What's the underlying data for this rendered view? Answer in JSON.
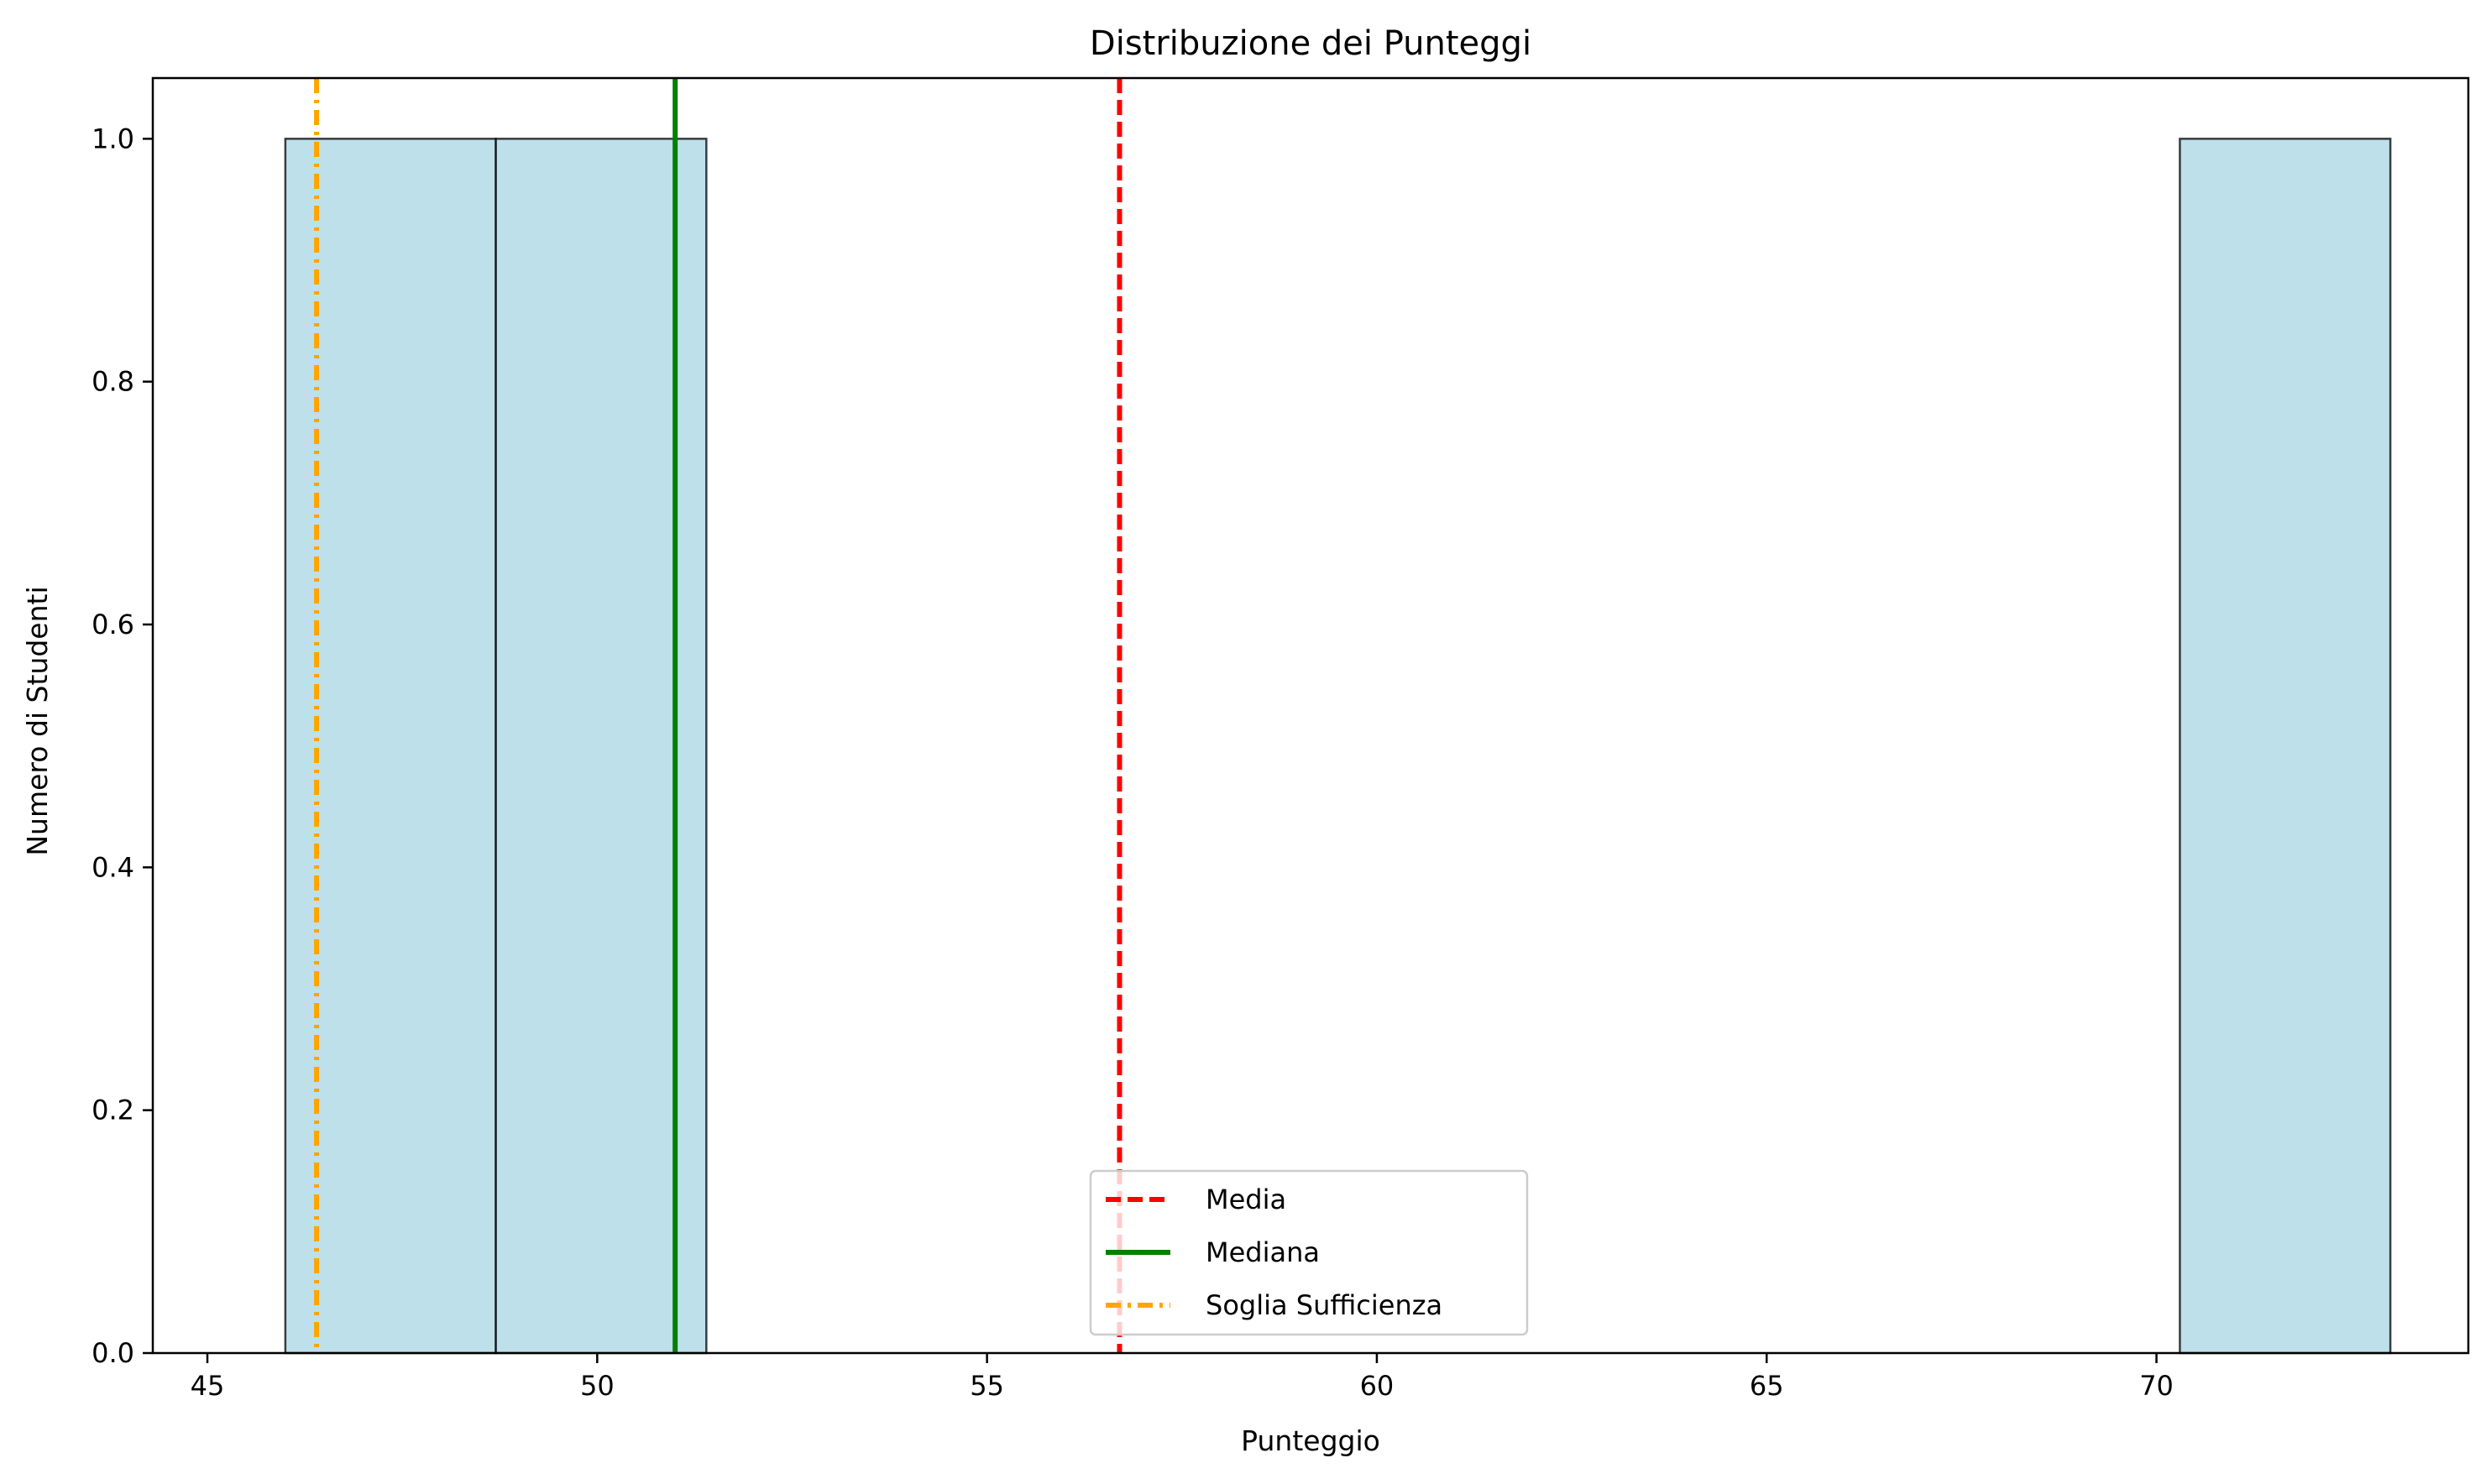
{
  "chart_data": {
    "type": "bar",
    "title": "Distribuzione dei Punteggi",
    "xlabel": "Punteggio",
    "ylabel": "Numero di Studenti",
    "xlim": [
      44.3,
      74.0
    ],
    "ylim": [
      0.0,
      1.05
    ],
    "xticks": [
      45,
      50,
      55,
      60,
      65,
      70
    ],
    "yticks": [
      "0.0",
      "0.2",
      "0.4",
      "0.6",
      "0.8",
      "1.0"
    ],
    "bins": [
      {
        "x0": 46.0,
        "x1": 48.7,
        "count": 1
      },
      {
        "x0": 48.7,
        "x1": 51.4,
        "count": 1
      },
      {
        "x0": 70.3,
        "x1": 73.0,
        "count": 1
      }
    ],
    "vlines": [
      {
        "name": "Media",
        "x": 56.7,
        "color": "#ff0000",
        "style": "dashed"
      },
      {
        "name": "Mediana",
        "x": 51.0,
        "color": "#008000",
        "style": "solid"
      },
      {
        "name": "Soglia Sufficienza",
        "x": 46.4,
        "color": "#ffa500",
        "style": "dashdot"
      }
    ],
    "bar_color": "#add8e6",
    "bar_edge_color": "#000000",
    "grid": false,
    "legend_position": "lower-center"
  }
}
